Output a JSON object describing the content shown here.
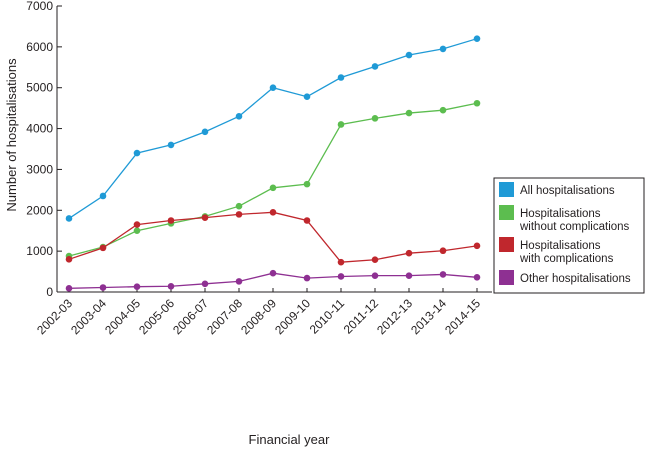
{
  "chart_data": {
    "type": "line",
    "xlabel": "Financial year",
    "ylabel": "Number of hospitalisations",
    "ylim": [
      0,
      7000
    ],
    "yticks": [
      0,
      1000,
      2000,
      3000,
      4000,
      5000,
      6000,
      7000
    ],
    "grid": false,
    "legend_position": "right",
    "categories": [
      "2002-03",
      "2003-04",
      "2004-05",
      "2005-06",
      "2006-07",
      "2007-08",
      "2008-09",
      "2009-10",
      "2010-11",
      "2011-12",
      "2012-13",
      "2013-14",
      "2014-15"
    ],
    "series": [
      {
        "name": "All hospitalisations",
        "color": "#1f9ad6",
        "values": [
          1800,
          2350,
          3400,
          3600,
          3920,
          4300,
          5000,
          4780,
          5250,
          5520,
          5800,
          5950,
          6200
        ]
      },
      {
        "name": "Hospitalisations\nwithout complications",
        "color": "#5cbd4f",
        "values": [
          880,
          1100,
          1500,
          1680,
          1850,
          2100,
          2550,
          2640,
          4100,
          4250,
          4380,
          4450,
          4620
        ]
      },
      {
        "name": "Hospitalisations\nwith complications",
        "color": "#c0272d",
        "values": [
          800,
          1080,
          1650,
          1750,
          1820,
          1900,
          1950,
          1750,
          730,
          790,
          950,
          1010,
          1130
        ]
      },
      {
        "name": "Other hospitalisations",
        "color": "#8e3092",
        "values": [
          90,
          110,
          130,
          140,
          200,
          260,
          460,
          340,
          380,
          400,
          400,
          430,
          360
        ]
      }
    ]
  }
}
